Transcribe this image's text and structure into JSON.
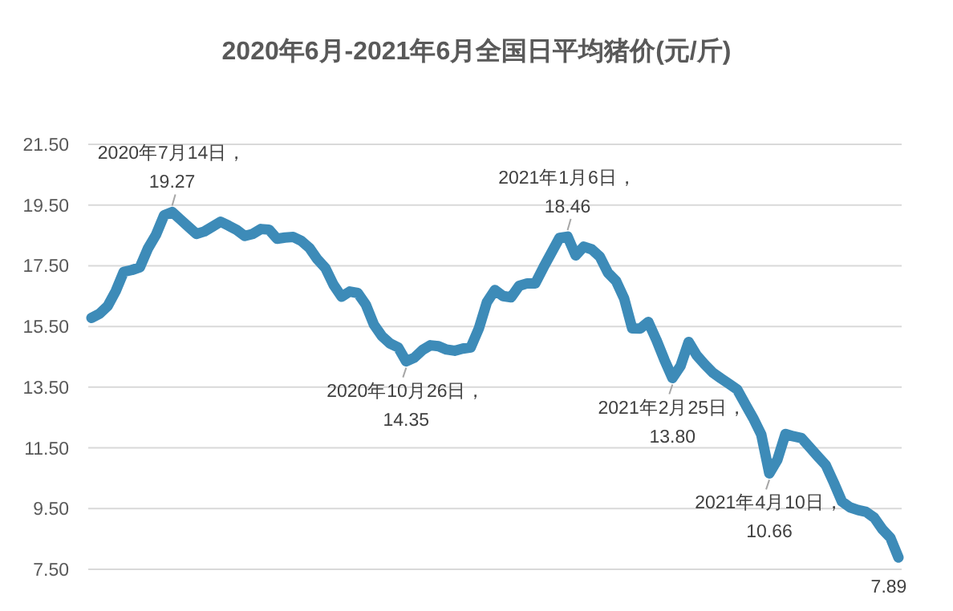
{
  "chart_data": {
    "type": "line",
    "title": "2020年6月-2021年6月全国日平均猪价(元/斤)",
    "categories": [
      null,
      null,
      null,
      null,
      null,
      null,
      null,
      null,
      null,
      null,
      null,
      null,
      null,
      null,
      null,
      null,
      null,
      null,
      null,
      null,
      null,
      null,
      null,
      null,
      null,
      null,
      null,
      null,
      null,
      null,
      null,
      null,
      null,
      null,
      null,
      null,
      null,
      null,
      null,
      null,
      null,
      null,
      null,
      null,
      null,
      null,
      null,
      null,
      null,
      null,
      null,
      null,
      null,
      null,
      null,
      null,
      null,
      null,
      null,
      null,
      null,
      null,
      null,
      null,
      null,
      null,
      null,
      null,
      null,
      null,
      null,
      null,
      null,
      null,
      null,
      null,
      null,
      null,
      null,
      null,
      null,
      null,
      null,
      null,
      null,
      null,
      null,
      null,
      null,
      null,
      null,
      null,
      null,
      null,
      null,
      null,
      null,
      null,
      null,
      null,
      null
    ],
    "series": [
      {
        "color": "#3d8bb8",
        "values": [
          15.78,
          15.92,
          16.17,
          16.66,
          17.3,
          17.36,
          17.45,
          18.07,
          18.52,
          19.16,
          19.27,
          19.03,
          18.79,
          18.55,
          18.63,
          18.79,
          18.95,
          18.82,
          18.68,
          18.48,
          18.55,
          18.71,
          18.69,
          18.39,
          18.43,
          18.45,
          18.32,
          18.09,
          17.71,
          17.42,
          16.87,
          16.48,
          16.65,
          16.6,
          16.22,
          15.56,
          15.18,
          14.94,
          14.81,
          14.35,
          14.47,
          14.72,
          14.88,
          14.85,
          14.74,
          14.7,
          14.77,
          14.81,
          15.43,
          16.3,
          16.7,
          16.5,
          16.46,
          16.84,
          16.92,
          16.92,
          17.44,
          17.93,
          18.42,
          18.46,
          17.84,
          18.13,
          18.04,
          17.8,
          17.27,
          17.0,
          16.43,
          15.44,
          15.43,
          15.65,
          15.06,
          14.4,
          13.8,
          14.2,
          14.99,
          14.55,
          14.25,
          13.98,
          13.79,
          13.61,
          13.43,
          12.95,
          12.48,
          11.94,
          10.66,
          11.11,
          11.96,
          11.88,
          11.82,
          11.52,
          11.22,
          10.93,
          10.35,
          9.73,
          9.54,
          9.45,
          9.39,
          9.2,
          8.82,
          8.54,
          7.89
        ]
      }
    ],
    "ylim": [
      7.5,
      21.5
    ],
    "yticks": [
      {
        "value": 7.5,
        "label": "7.50"
      },
      {
        "value": 9.5,
        "label": "9.50"
      },
      {
        "value": 11.5,
        "label": "11.50"
      },
      {
        "value": 13.5,
        "label": "13.50"
      },
      {
        "value": 15.5,
        "label": "15.50"
      },
      {
        "value": 17.5,
        "label": "17.50"
      },
      {
        "value": 19.5,
        "label": "19.50"
      },
      {
        "value": 21.5,
        "label": "21.50"
      }
    ],
    "tick_labels": "y",
    "grid": "y",
    "annotations": [
      {
        "text": "2020年7月14日，\n19.27",
        "y": 19.27
      },
      {
        "text": "2020年10月26日，\n14.35",
        "y": 14.35
      },
      {
        "text": "2021年1月6日，\n18.46",
        "y": 18.46
      },
      {
        "text": "2021年2月25日，\n13.80",
        "y": 13.8
      },
      {
        "text": "2021年4月10日，\n10.66",
        "y": 10.66
      },
      {
        "text": "7.89",
        "y": 7.89
      }
    ]
  }
}
